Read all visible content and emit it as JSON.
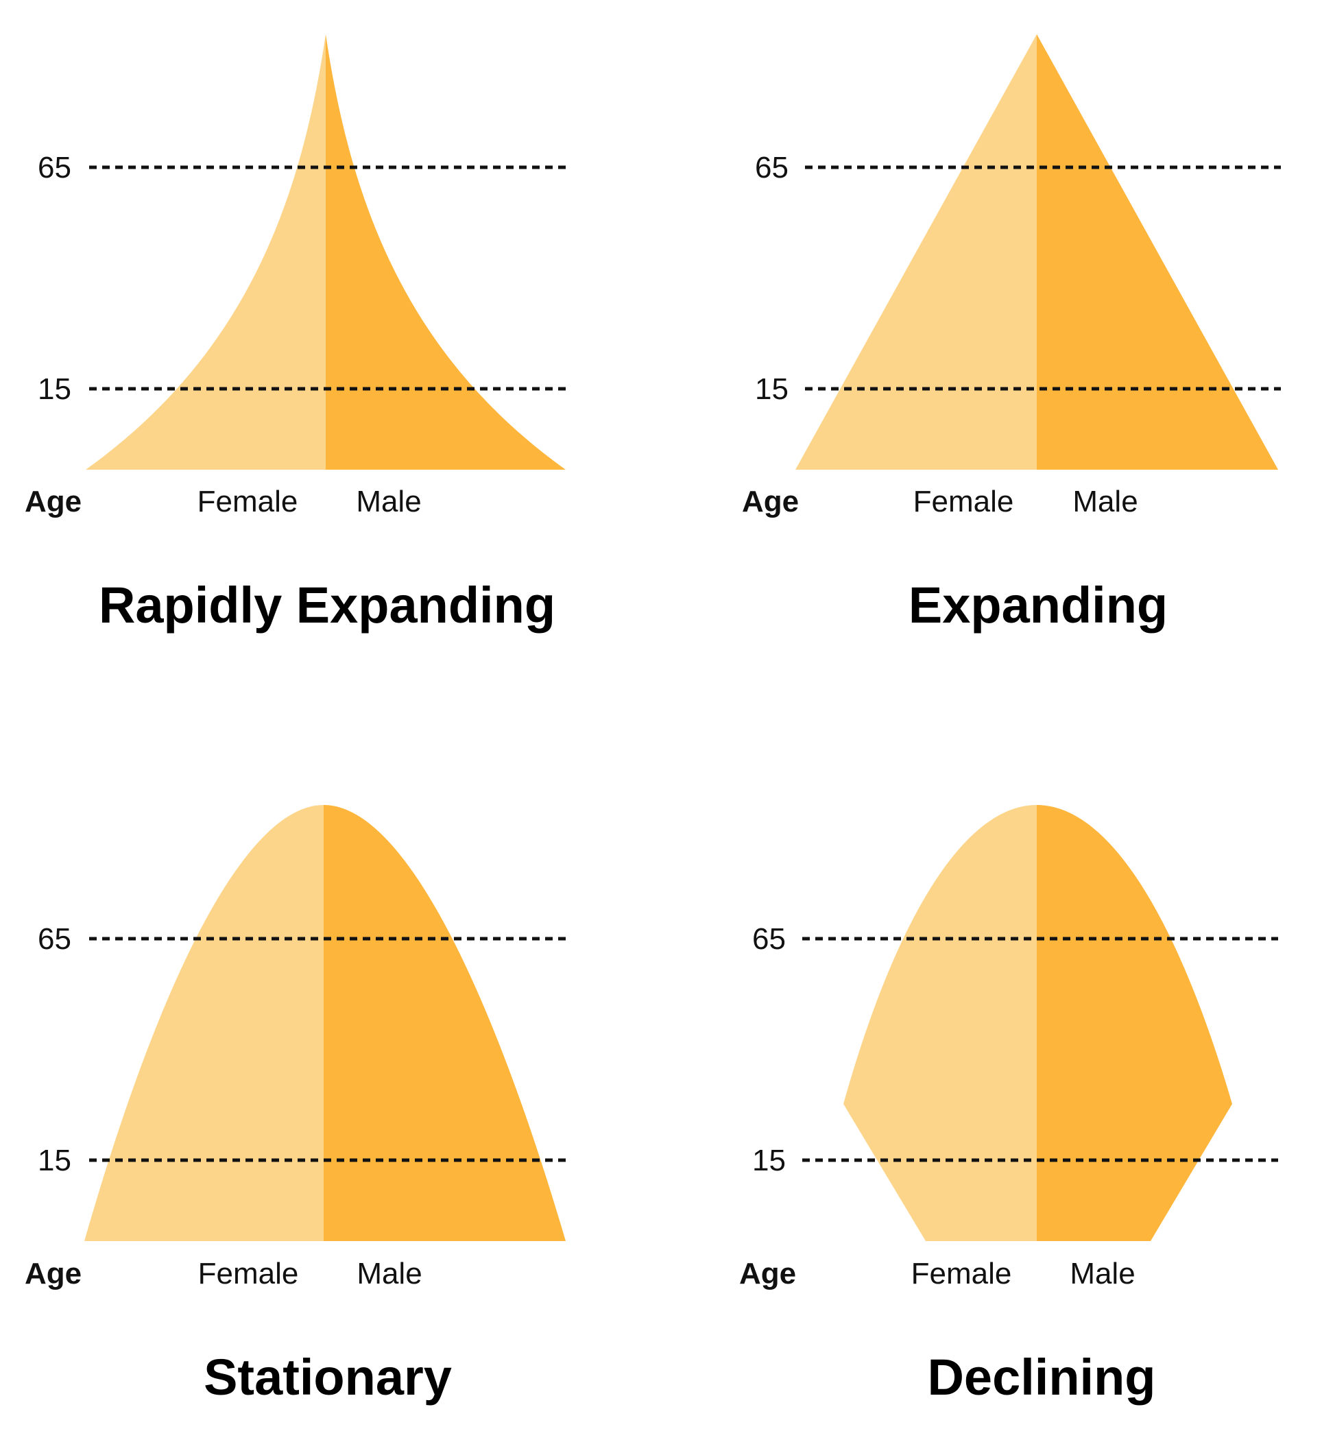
{
  "colors": {
    "female": "#fdd58a",
    "male": "#fdb53b",
    "text": "#111111",
    "guide": "#111111"
  },
  "panels": [
    {
      "title": "Rapidly Expanding",
      "shape": "concave",
      "age_label": "Age",
      "female_label": "Female",
      "male_label": "Male",
      "ticks": [
        "65",
        "15"
      ]
    },
    {
      "title": "Expanding",
      "shape": "triangle",
      "age_label": "Age",
      "female_label": "Female",
      "male_label": "Male",
      "ticks": [
        "65",
        "15"
      ]
    },
    {
      "title": "Stationary",
      "shape": "bell",
      "age_label": "Age",
      "female_label": "Female",
      "male_label": "Male",
      "ticks": [
        "65",
        "15"
      ]
    },
    {
      "title": "Declining",
      "shape": "narrow-base",
      "age_label": "Age",
      "female_label": "Female",
      "male_label": "Male",
      "ticks": [
        "65",
        "15"
      ]
    }
  ]
}
